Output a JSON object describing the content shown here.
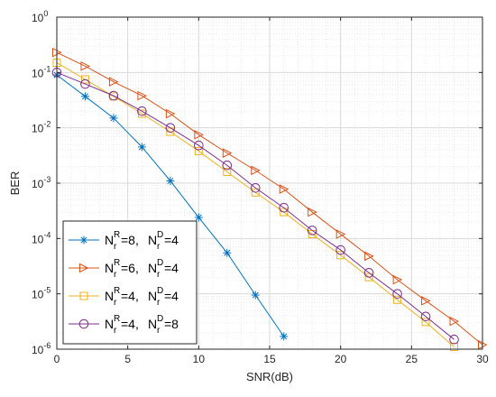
{
  "chart_data": {
    "type": "line",
    "xlabel": "SNR(dB)",
    "ylabel": "BER",
    "xlim": [
      0,
      30
    ],
    "ylim": [
      1e-06,
      1
    ],
    "y_scale": "log",
    "grid": true,
    "minor_grid": true,
    "legend_position": "bottom-left",
    "x_ticks": [
      "0",
      "5",
      "10",
      "15",
      "20",
      "25",
      "30"
    ],
    "y_ticks": [
      {
        "base": "10",
        "exp": "0"
      },
      {
        "base": "10",
        "exp": "-1"
      },
      {
        "base": "10",
        "exp": "-2"
      },
      {
        "base": "10",
        "exp": "-3"
      },
      {
        "base": "10",
        "exp": "-4"
      },
      {
        "base": "10",
        "exp": "-5"
      },
      {
        "base": "10",
        "exp": "-6"
      }
    ],
    "series": [
      {
        "label_parts": {
          "a": "N",
          "a_sup": "R",
          "a_sub": "r",
          "a_val": "=8,",
          "b": "N",
          "b_sup": "D",
          "b_sub": "r",
          "b_val": "=4"
        },
        "color": "#0072BD",
        "marker": "asterisk",
        "x": [
          0,
          2,
          4,
          6,
          8,
          10,
          12,
          14,
          16
        ],
        "y": [
          0.09,
          0.037,
          0.015,
          0.0045,
          0.0011,
          0.00024,
          5.5e-05,
          9.5e-06,
          1.7e-06
        ]
      },
      {
        "label_parts": {
          "a": "N",
          "a_sup": "R",
          "a_sub": "r",
          "a_val": "=6,",
          "b": "N",
          "b_sup": "D",
          "b_sub": "r",
          "b_val": "=4"
        },
        "color": "#D95319",
        "marker": "triangle-right",
        "x": [
          0,
          2,
          4,
          6,
          8,
          10,
          12,
          14,
          16,
          18,
          20,
          22,
          24,
          26,
          28,
          30
        ],
        "y": [
          0.23,
          0.13,
          0.068,
          0.038,
          0.018,
          0.0075,
          0.0035,
          0.0017,
          0.00078,
          0.0003,
          0.00012,
          4.8e-05,
          1.8e-05,
          7.5e-06,
          3.2e-06,
          1.2e-06
        ]
      },
      {
        "label_parts": {
          "a": "N",
          "a_sup": "R",
          "a_sub": "r",
          "a_val": "=4,",
          "b": "N",
          "b_sup": "D",
          "b_sub": "r",
          "b_val": "=4"
        },
        "color": "#EDB120",
        "marker": "square",
        "x": [
          0,
          2,
          4,
          6,
          8,
          10,
          12,
          14,
          16,
          18,
          20,
          22,
          24,
          26,
          28
        ],
        "y": [
          0.15,
          0.075,
          0.037,
          0.018,
          0.0085,
          0.0038,
          0.0016,
          0.00068,
          0.0003,
          0.00012,
          5e-05,
          2e-05,
          7.8e-06,
          3.1e-06,
          1.1e-06
        ]
      },
      {
        "label_parts": {
          "a": "N",
          "a_sup": "R",
          "a_sub": "r",
          "a_val": "=4,",
          "b": "N",
          "b_sup": "D",
          "b_sub": "r",
          "b_val": "=8"
        },
        "color": "#7E2F8E",
        "marker": "circle",
        "x": [
          0,
          2,
          4,
          6,
          8,
          10,
          12,
          14,
          16,
          18,
          20,
          22,
          24,
          26,
          28
        ],
        "y": [
          0.1,
          0.062,
          0.038,
          0.02,
          0.01,
          0.0048,
          0.0021,
          0.00082,
          0.00036,
          0.00014,
          6.2e-05,
          2.4e-05,
          1e-05,
          3.9e-06,
          1.5e-06
        ]
      }
    ]
  }
}
